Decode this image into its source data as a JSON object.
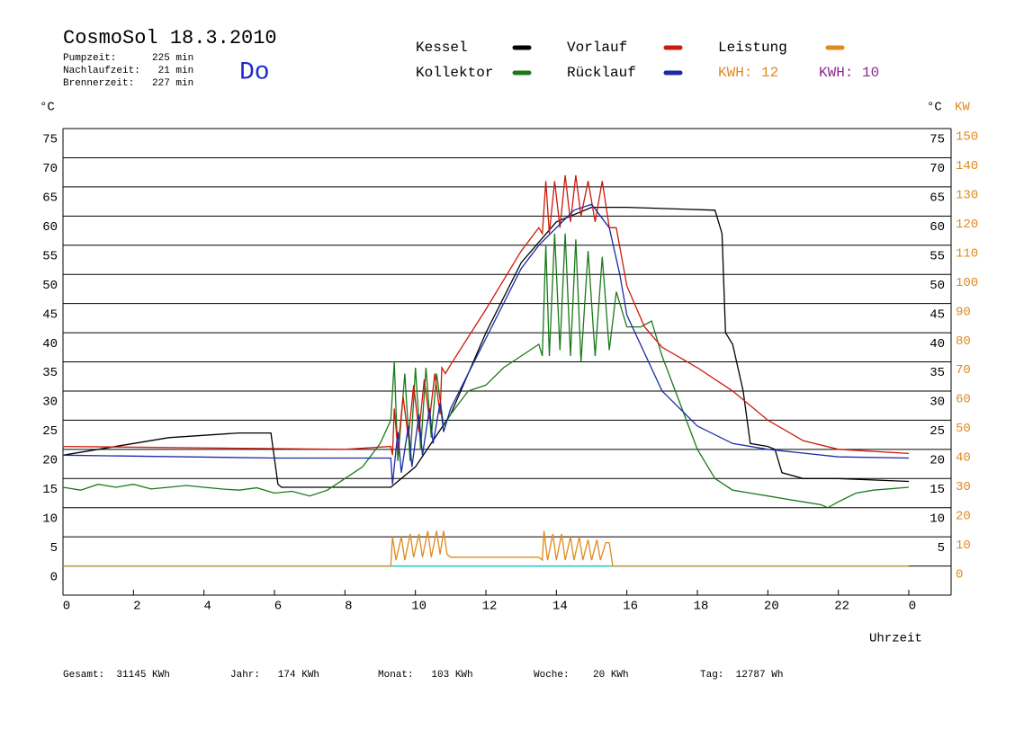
{
  "chart_data": {
    "type": "line",
    "title": "CosmoSol 18.3.2010",
    "info": [
      "Pumpzeit:      225 min",
      "Nachlaufzeit:   21 min",
      "Brennerzeit:   227 min"
    ],
    "weekday": "Do",
    "ylabel": "°C",
    "ylabel_right": "°C",
    "y2label": "KW",
    "xlabel": "Uhrzeit",
    "kwh_labels": [
      {
        "text": "KWH: 12",
        "color": "#e08a1e"
      },
      {
        "text": "KWH: 10",
        "color": "#8b2a8b"
      }
    ],
    "footer": [
      "Gesamt:  31145 KWh",
      "Jahr:   174 KWh",
      "Monat:   103 KWh",
      "Woche:    20 KWh",
      "Tag:  12787 Wh"
    ],
    "xlim": [
      0,
      24
    ],
    "xticks": [
      0,
      2,
      4,
      6,
      8,
      10,
      12,
      14,
      16,
      18,
      20,
      22,
      {
        "value": 24,
        "label": "0"
      }
    ],
    "ylim": [
      -5,
      75
    ],
    "yticks": [
      0,
      5,
      10,
      15,
      20,
      25,
      30,
      35,
      40,
      45,
      50,
      55,
      60,
      65,
      70,
      75
    ],
    "yticks_right": [
      5,
      10,
      15,
      20,
      25,
      30,
      35,
      40,
      45,
      50,
      55,
      60,
      65,
      70,
      75
    ],
    "y2lim": [
      -10,
      150
    ],
    "y2ticks": [
      0,
      10,
      20,
      30,
      40,
      50,
      60,
      70,
      80,
      90,
      100,
      110,
      120,
      130,
      140,
      150
    ],
    "grid": true,
    "series": [
      {
        "name": "Kessel",
        "color": "#000000",
        "x": [
          0,
          2,
          3,
          5,
          5.9,
          6.1,
          6.2,
          8,
          9.3,
          9.5,
          10,
          11,
          12,
          13,
          14,
          15,
          16,
          18.5,
          18.7,
          18.8,
          19,
          19.3,
          19.5,
          20,
          20.2,
          20.4,
          21,
          22,
          24
        ],
        "values": [
          19,
          21,
          22,
          22.8,
          22.8,
          14,
          13.5,
          13.5,
          13.5,
          14.5,
          17,
          26,
          40,
          52,
          59,
          61.5,
          61.5,
          61,
          57,
          40,
          38,
          30,
          21,
          20.5,
          20,
          16,
          15,
          15,
          14.5
        ]
      },
      {
        "name": "Kollektor",
        "color": "#1a7a1a",
        "x": [
          0,
          0.5,
          1,
          1.5,
          2,
          2.5,
          3,
          3.5,
          4,
          4.5,
          5,
          5.5,
          6,
          6.5,
          7,
          7.5,
          8,
          8.5,
          9,
          9.3,
          9.4,
          9.5,
          9.7,
          9.85,
          10,
          10.15,
          10.3,
          10.45,
          10.6,
          10.8,
          11,
          11.5,
          12,
          12.5,
          13,
          13.5,
          13.6,
          13.7,
          13.8,
          13.95,
          14.1,
          14.25,
          14.4,
          14.55,
          14.7,
          14.9,
          15.1,
          15.3,
          15.5,
          15.7,
          16,
          16.4,
          16.7,
          17,
          17.5,
          18,
          18.5,
          19,
          19.5,
          20,
          20.5,
          21,
          21.5,
          21.7,
          22,
          22.5,
          23,
          24
        ],
        "values": [
          13.5,
          13,
          14,
          13.5,
          14,
          13.2,
          13.5,
          13.8,
          13.5,
          13.2,
          13,
          13.4,
          12.5,
          12.8,
          12,
          13,
          15,
          17,
          21,
          25,
          35,
          18,
          33,
          18,
          34,
          20,
          34,
          22,
          33,
          24,
          26,
          30,
          31,
          34,
          36,
          38,
          36,
          55,
          36,
          57,
          37,
          57,
          36,
          56,
          35,
          54,
          36,
          53,
          37,
          47,
          41,
          41,
          42,
          36,
          28,
          20,
          15,
          13,
          12.5,
          12,
          11.5,
          11,
          10.5,
          10,
          11,
          12.5,
          13,
          13.5
        ]
      },
      {
        "name": "Vorlauf",
        "color": "#cc1a0a",
        "x": [
          0,
          8,
          9.3,
          9.35,
          9.4,
          9.5,
          9.65,
          9.8,
          9.95,
          10.1,
          10.25,
          10.4,
          10.55,
          10.7,
          10.75,
          10.85,
          11,
          12,
          13,
          13.5,
          13.6,
          13.7,
          13.8,
          13.95,
          14.1,
          14.25,
          14.4,
          14.55,
          14.7,
          14.9,
          15.1,
          15.3,
          15.5,
          15.7,
          16,
          16.5,
          17,
          18,
          19,
          20,
          21,
          22,
          24
        ],
        "values": [
          20.5,
          20,
          20.5,
          19,
          27,
          20,
          29,
          22,
          31,
          23,
          32,
          25,
          33,
          26,
          34,
          33,
          34.5,
          44,
          54,
          58,
          57,
          66,
          57,
          66,
          58,
          67,
          59,
          67,
          60,
          66,
          59,
          66,
          58,
          58,
          48,
          41,
          37.5,
          34,
          30,
          25,
          21.5,
          20,
          19.3
        ]
      },
      {
        "name": "Rücklauf",
        "color": "#1a2aa8",
        "x": [
          0,
          6,
          9.3,
          9.35,
          9.5,
          9.6,
          9.8,
          9.9,
          10.1,
          10.2,
          10.4,
          10.5,
          10.7,
          10.8,
          11,
          12,
          13,
          13.5,
          14,
          14.5,
          15,
          15.5,
          15.8,
          16,
          17,
          18,
          19,
          20,
          22,
          24
        ],
        "values": [
          19,
          18.5,
          18.5,
          14,
          23,
          16,
          24,
          17,
          26,
          19,
          27,
          21,
          28,
          23,
          27,
          39,
          51,
          55,
          58,
          61,
          62,
          58,
          50,
          43,
          30,
          24,
          21,
          20,
          18.7,
          18.5
        ]
      },
      {
        "name": "Leistung",
        "color": "#e08a1e",
        "axis": "y2",
        "x": [
          0,
          9.3,
          9.35,
          9.45,
          9.6,
          9.7,
          9.85,
          9.95,
          10.1,
          10.2,
          10.35,
          10.45,
          10.6,
          10.7,
          10.8,
          10.9,
          11,
          13.5,
          13.6,
          13.65,
          13.75,
          13.9,
          14,
          14.15,
          14.25,
          14.4,
          14.5,
          14.65,
          14.75,
          14.9,
          15,
          15.15,
          15.25,
          15.4,
          15.5,
          15.6,
          24
        ],
        "values": [
          0,
          0,
          10,
          2,
          10,
          2,
          11,
          3,
          11,
          3,
          12,
          3,
          12,
          4,
          12,
          4,
          3,
          3,
          2,
          12,
          2,
          11,
          2,
          11,
          2,
          10,
          2,
          10,
          2,
          9,
          2,
          9,
          2,
          8,
          8,
          0,
          0
        ]
      }
    ]
  }
}
